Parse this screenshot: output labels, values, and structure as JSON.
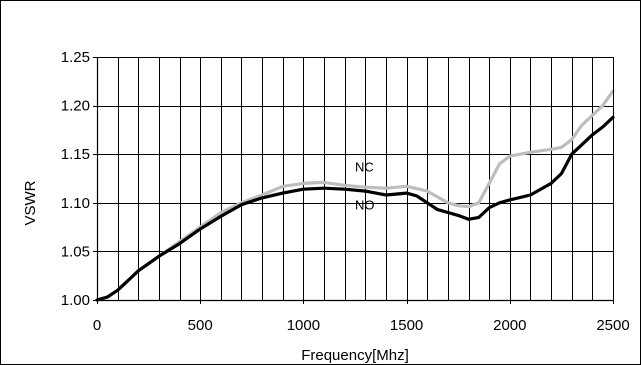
{
  "chart_data": {
    "type": "line",
    "title": "",
    "xlabel": "Frequency[Mhz]",
    "ylabel": "VSWR",
    "xlim": [
      0,
      2500
    ],
    "ylim": [
      1.0,
      1.25
    ],
    "x_ticks": [
      "0",
      "500",
      "1000",
      "1500",
      "2000",
      "2500"
    ],
    "y_ticks": [
      "1.00",
      "1.05",
      "1.10",
      "1.15",
      "1.20",
      "1.25"
    ],
    "x_ticks_values": [
      0,
      500,
      1000,
      1500,
      2000,
      2500
    ],
    "y_ticks_values": [
      1.0,
      1.05,
      1.1,
      1.15,
      1.2,
      1.25
    ],
    "grid": {
      "vertical_step": 100,
      "horizontal_step": 0.05
    },
    "legend": "none",
    "series": [
      {
        "name": "NC",
        "color": "#bdbdbd",
        "x": [
          0,
          50,
          100,
          150,
          200,
          300,
          400,
          500,
          600,
          700,
          800,
          900,
          1000,
          1100,
          1200,
          1300,
          1400,
          1500,
          1600,
          1650,
          1700,
          1750,
          1800,
          1850,
          1900,
          1950,
          2000,
          2050,
          2100,
          2200,
          2250,
          2300,
          2350,
          2400,
          2450,
          2500
        ],
        "y": [
          1.0,
          1.003,
          1.01,
          1.02,
          1.03,
          1.045,
          1.06,
          1.075,
          1.09,
          1.1,
          1.108,
          1.117,
          1.12,
          1.121,
          1.118,
          1.116,
          1.115,
          1.117,
          1.112,
          1.106,
          1.1,
          1.097,
          1.096,
          1.1,
          1.12,
          1.14,
          1.148,
          1.15,
          1.152,
          1.155,
          1.157,
          1.165,
          1.18,
          1.19,
          1.2,
          1.215
        ]
      },
      {
        "name": "NO",
        "color": "#000000",
        "x": [
          0,
          50,
          100,
          150,
          200,
          300,
          400,
          500,
          600,
          700,
          800,
          900,
          1000,
          1100,
          1200,
          1300,
          1400,
          1500,
          1550,
          1600,
          1650,
          1700,
          1750,
          1800,
          1850,
          1900,
          1950,
          2000,
          2100,
          2200,
          2250,
          2300,
          2400,
          2450,
          2500
        ],
        "y": [
          1.0,
          1.003,
          1.01,
          1.02,
          1.03,
          1.045,
          1.058,
          1.073,
          1.086,
          1.098,
          1.105,
          1.11,
          1.114,
          1.115,
          1.114,
          1.112,
          1.108,
          1.11,
          1.107,
          1.1,
          1.093,
          1.09,
          1.087,
          1.083,
          1.085,
          1.095,
          1.1,
          1.103,
          1.108,
          1.12,
          1.13,
          1.15,
          1.17,
          1.178,
          1.188
        ]
      }
    ],
    "annotations": [
      {
        "text": "NC",
        "x": 1250,
        "y": 1.132
      },
      {
        "text": "NO",
        "x": 1250,
        "y": 1.093
      }
    ]
  }
}
